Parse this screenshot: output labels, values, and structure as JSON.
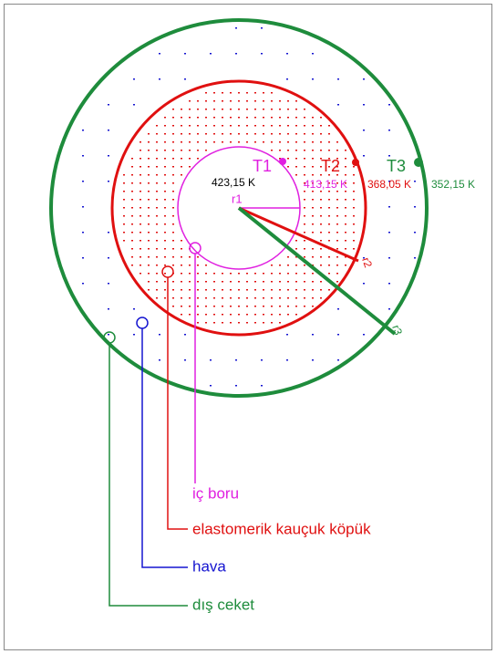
{
  "diagram": {
    "temperatures": {
      "t1": "T1",
      "t2": "T2",
      "t3": "T3"
    },
    "values": {
      "center": "423,15 K",
      "t1": "413,15 K",
      "t2": "368,05 K",
      "t3": "352,15 K"
    },
    "radii": {
      "r1": "r1",
      "r2": "r2",
      "r3": "r3"
    },
    "labels": {
      "inner_pipe": "iç boru",
      "foam": "elastomerik kauçuk köpük",
      "air": "hava",
      "jacket": "dış ceket"
    }
  }
}
